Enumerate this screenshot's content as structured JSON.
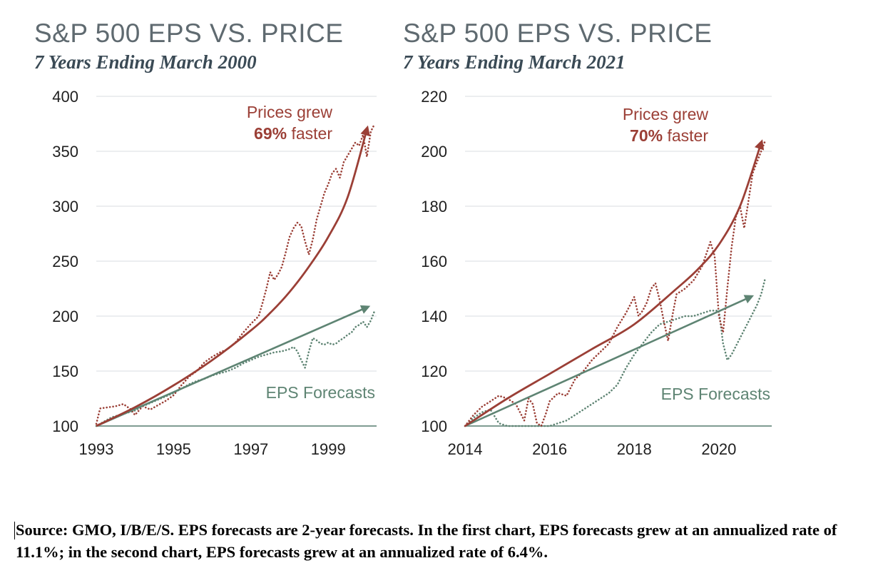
{
  "charts": [
    {
      "type": "line",
      "title": "S&P 500 EPS VS. PRICE",
      "subtitle": "7 Years Ending March 2000",
      "xlim": [
        1993.0,
        2000.25
      ],
      "ylim": [
        100,
        400
      ],
      "xticks": [
        1993,
        1995,
        1997,
        1999
      ],
      "yticks": [
        100,
        150,
        200,
        250,
        300,
        350,
        400
      ],
      "grid": true,
      "annotation_price": {
        "line1": "Prices grew",
        "pct": "69%",
        "rest": " faster"
      },
      "annotation_eps": "EPS Forecasts",
      "colors": {
        "price": "#9b3f36",
        "eps": "#5e8473"
      },
      "price_trend": {
        "x": [
          1993.0,
          1994.0,
          1995.0,
          1996.0,
          1997.0,
          1997.5,
          1998.0,
          1998.5,
          1999.0,
          1999.5,
          2000.0
        ],
        "y": [
          100,
          117,
          137,
          160,
          187,
          203,
          222,
          245,
          272,
          308,
          370
        ]
      },
      "eps_trend": {
        "x": [
          1993.0,
          2000.0
        ],
        "y": [
          100,
          208
        ]
      },
      "price_series": {
        "x": [
          1993.0,
          1993.1,
          1993.3,
          1993.5,
          1993.7,
          1993.9,
          1994.0,
          1994.2,
          1994.4,
          1994.6,
          1994.8,
          1995.0,
          1995.2,
          1995.4,
          1995.6,
          1995.8,
          1996.0,
          1996.2,
          1996.4,
          1996.6,
          1996.8,
          1997.0,
          1997.2,
          1997.3,
          1997.4,
          1997.5,
          1997.6,
          1997.7,
          1997.8,
          1997.9,
          1998.0,
          1998.1,
          1998.2,
          1998.3,
          1998.4,
          1998.5,
          1998.6,
          1998.7,
          1998.8,
          1998.9,
          1999.0,
          1999.1,
          1999.2,
          1999.3,
          1999.4,
          1999.5,
          1999.6,
          1999.7,
          1999.8,
          1999.9,
          2000.0,
          2000.1,
          2000.2
        ],
        "y": [
          102,
          116,
          117,
          118,
          120,
          115,
          110,
          118,
          115,
          119,
          123,
          128,
          137,
          145,
          150,
          158,
          163,
          167,
          170,
          176,
          185,
          193,
          200,
          212,
          225,
          240,
          233,
          238,
          245,
          258,
          272,
          280,
          285,
          282,
          268,
          256,
          270,
          288,
          300,
          312,
          320,
          330,
          334,
          326,
          340,
          346,
          352,
          358,
          355,
          365,
          345,
          368,
          375
        ]
      },
      "eps_series": {
        "x": [
          1993.0,
          1993.2,
          1993.4,
          1993.6,
          1993.8,
          1994.0,
          1994.2,
          1994.4,
          1994.6,
          1994.8,
          1995.0,
          1995.2,
          1995.4,
          1995.6,
          1995.8,
          1996.0,
          1996.2,
          1996.4,
          1996.6,
          1996.8,
          1997.0,
          1997.2,
          1997.4,
          1997.6,
          1997.8,
          1998.0,
          1998.1,
          1998.2,
          1998.3,
          1998.4,
          1998.5,
          1998.6,
          1998.7,
          1998.8,
          1998.9,
          1999.0,
          1999.1,
          1999.2,
          1999.3,
          1999.4,
          1999.5,
          1999.6,
          1999.7,
          1999.8,
          1999.9,
          2000.0,
          2000.1,
          2000.2
        ],
        "y": [
          100,
          104,
          108,
          110,
          112,
          114,
          118,
          121,
          124,
          127,
          130,
          134,
          138,
          141,
          143,
          146,
          148,
          150,
          153,
          157,
          160,
          163,
          165,
          167,
          168,
          170,
          172,
          168,
          160,
          153,
          168,
          180,
          178,
          175,
          174,
          176,
          174,
          175,
          178,
          180,
          183,
          185,
          190,
          192,
          195,
          190,
          196,
          205
        ]
      }
    },
    {
      "type": "line",
      "title": "S&P 500 EPS VS. PRICE",
      "subtitle": "7 Years Ending March 2021",
      "xlim": [
        2014.0,
        2021.25
      ],
      "ylim": [
        100,
        220
      ],
      "xticks": [
        2014,
        2016,
        2018,
        2020
      ],
      "yticks": [
        100,
        120,
        140,
        160,
        180,
        200,
        220
      ],
      "grid": true,
      "annotation_price": {
        "line1": "Prices grew",
        "pct": "70%",
        "rest": " faster"
      },
      "annotation_eps": "EPS Forecasts",
      "colors": {
        "price": "#9b3f36",
        "eps": "#5e8473"
      },
      "price_trend": {
        "x": [
          2014.0,
          2015.0,
          2016.0,
          2017.0,
          2018.0,
          2019.0,
          2019.5,
          2020.0,
          2020.5,
          2021.0
        ],
        "y": [
          100,
          110,
          119,
          128,
          137,
          150,
          157,
          166,
          180,
          203
        ]
      },
      "eps_trend": {
        "x": [
          2014.0,
          2020.75
        ],
        "y": [
          100,
          147
        ]
      },
      "price_series": {
        "x": [
          2014.0,
          2014.2,
          2014.4,
          2014.6,
          2014.8,
          2015.0,
          2015.2,
          2015.4,
          2015.5,
          2015.6,
          2015.7,
          2015.8,
          2015.9,
          2016.0,
          2016.2,
          2016.4,
          2016.6,
          2016.8,
          2017.0,
          2017.2,
          2017.4,
          2017.6,
          2017.8,
          2018.0,
          2018.1,
          2018.2,
          2018.3,
          2018.4,
          2018.5,
          2018.6,
          2018.7,
          2018.8,
          2018.9,
          2019.0,
          2019.2,
          2019.4,
          2019.6,
          2019.8,
          2019.9,
          2020.0,
          2020.1,
          2020.2,
          2020.3,
          2020.4,
          2020.5,
          2020.6,
          2020.7,
          2020.8,
          2020.9,
          2021.0,
          2021.1
        ],
        "y": [
          100,
          104,
          107,
          109,
          111,
          110,
          108,
          102,
          110,
          108,
          101,
          100,
          104,
          109,
          112,
          111,
          117,
          120,
          124,
          127,
          130,
          136,
          141,
          147,
          140,
          142,
          145,
          150,
          152,
          146,
          138,
          131,
          140,
          148,
          150,
          153,
          158,
          167,
          162,
          140,
          134,
          150,
          165,
          176,
          180,
          172,
          182,
          192,
          196,
          200,
          204
        ]
      },
      "eps_series": {
        "x": [
          2014.0,
          2014.2,
          2014.4,
          2014.6,
          2014.8,
          2015.0,
          2015.2,
          2015.4,
          2015.6,
          2015.8,
          2016.0,
          2016.2,
          2016.4,
          2016.6,
          2016.8,
          2017.0,
          2017.2,
          2017.4,
          2017.6,
          2017.8,
          2018.0,
          2018.2,
          2018.4,
          2018.6,
          2018.8,
          2019.0,
          2019.2,
          2019.4,
          2019.6,
          2019.8,
          2020.0,
          2020.1,
          2020.2,
          2020.3,
          2020.4,
          2020.5,
          2020.6,
          2020.7,
          2020.8,
          2020.9,
          2021.0,
          2021.1
        ],
        "y": [
          100,
          103,
          105,
          106,
          101,
          100,
          100,
          100,
          100,
          100,
          100,
          101,
          102,
          104,
          106,
          108,
          110,
          112,
          115,
          121,
          126,
          130,
          134,
          137,
          138,
          139,
          140,
          140,
          141,
          142,
          142,
          130,
          124,
          126,
          129,
          132,
          135,
          138,
          141,
          144,
          148,
          154
        ]
      }
    }
  ],
  "footnote": "Source: GMO, I/B/E/S. EPS forecasts are 2-year forecasts. In the first chart, EPS forecasts grew at an annualized rate of 11.1%; in the second chart, EPS forecasts grew at an annualized rate of 6.4%."
}
